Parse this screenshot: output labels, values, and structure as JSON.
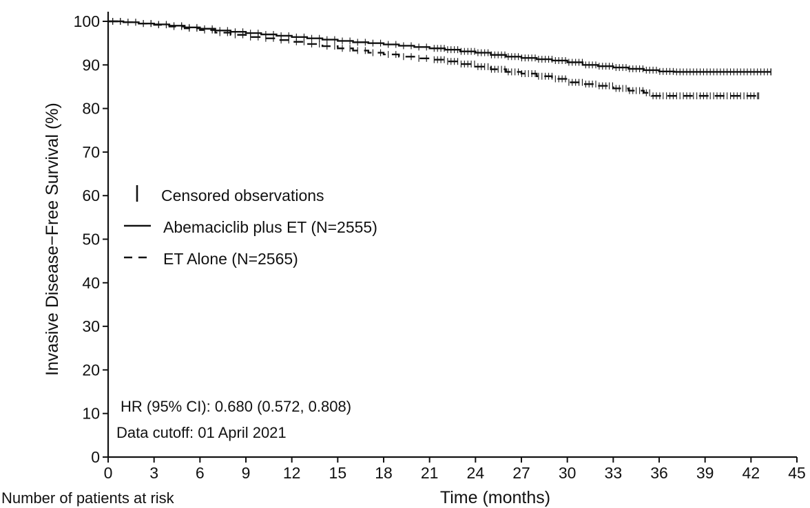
{
  "chart_data": {
    "type": "line",
    "title": "",
    "xlabel": "Time (months)",
    "ylabel": "Invasive Disease−Free Survival (%)",
    "xlim": [
      0,
      45
    ],
    "ylim": [
      0,
      100
    ],
    "xticks": [
      0,
      3,
      6,
      9,
      12,
      15,
      18,
      21,
      24,
      27,
      30,
      33,
      36,
      39,
      42,
      45
    ],
    "yticks": [
      0,
      10,
      20,
      30,
      40,
      50,
      60,
      70,
      80,
      90,
      100
    ],
    "grid": false,
    "legend": {
      "placement": "center-left",
      "entries": [
        {
          "symbol": "censor",
          "label": "Censored observations"
        },
        {
          "symbol": "solid",
          "label": "Abemaciclib plus ET (N=2555)"
        },
        {
          "symbol": "dashed",
          "label": "ET Alone (N=2565)"
        }
      ]
    },
    "annotations": [
      "HR (95% CI): 0.680 (0.572, 0.808)",
      "Data cutoff: 01 April 2021"
    ],
    "risk_table_label": "Number of patients at risk",
    "series": [
      {
        "name": "Abemaciclib plus ET (N=2555)",
        "style": "solid",
        "color": "#111111",
        "x": [
          0,
          1,
          2,
          3,
          4,
          5,
          6,
          7,
          8,
          9,
          10,
          11,
          12,
          13,
          14,
          15,
          16,
          17,
          18,
          19,
          20,
          21,
          22,
          23,
          24,
          25,
          26,
          27,
          28,
          29,
          30,
          31,
          32,
          33,
          34,
          35,
          36,
          37,
          38,
          39,
          40,
          41,
          42,
          43.3
        ],
        "y": [
          100,
          99.8,
          99.5,
          99.3,
          99.0,
          98.6,
          98.3,
          97.9,
          97.6,
          97.3,
          97.0,
          96.7,
          96.4,
          96.1,
          95.8,
          95.5,
          95.2,
          95.0,
          94.7,
          94.4,
          94.1,
          93.8,
          93.5,
          93.1,
          92.8,
          92.3,
          91.9,
          91.6,
          91.3,
          91.0,
          90.6,
          90.0,
          89.7,
          89.4,
          89.1,
          88.8,
          88.5,
          88.4,
          88.4,
          88.4,
          88.4,
          88.4,
          88.4,
          88.4
        ]
      },
      {
        "name": "ET Alone (N=2565)",
        "style": "dashed",
        "color": "#111111",
        "x": [
          0,
          1,
          2,
          3,
          4,
          5,
          6,
          7,
          8,
          9,
          10,
          11,
          12,
          13,
          14,
          15,
          16,
          17,
          18,
          19,
          20,
          21,
          22,
          23,
          24,
          25,
          26,
          27,
          28,
          29,
          30,
          31,
          32,
          33,
          34,
          35,
          35.5,
          36,
          37,
          38,
          39,
          40,
          41,
          42,
          42.5
        ],
        "y": [
          100,
          99.8,
          99.5,
          99.2,
          98.8,
          98.4,
          98.0,
          97.4,
          96.9,
          96.4,
          96.1,
          95.7,
          95.3,
          94.8,
          94.3,
          93.8,
          93.3,
          92.8,
          92.4,
          91.9,
          91.5,
          91.2,
          90.8,
          90.2,
          89.6,
          89.0,
          88.4,
          88.0,
          87.4,
          86.8,
          86.0,
          85.6,
          85.2,
          84.6,
          84.1,
          83.6,
          82.9,
          82.9,
          82.9,
          82.9,
          82.9,
          82.9,
          82.9,
          82.9,
          82.9
        ]
      }
    ]
  }
}
